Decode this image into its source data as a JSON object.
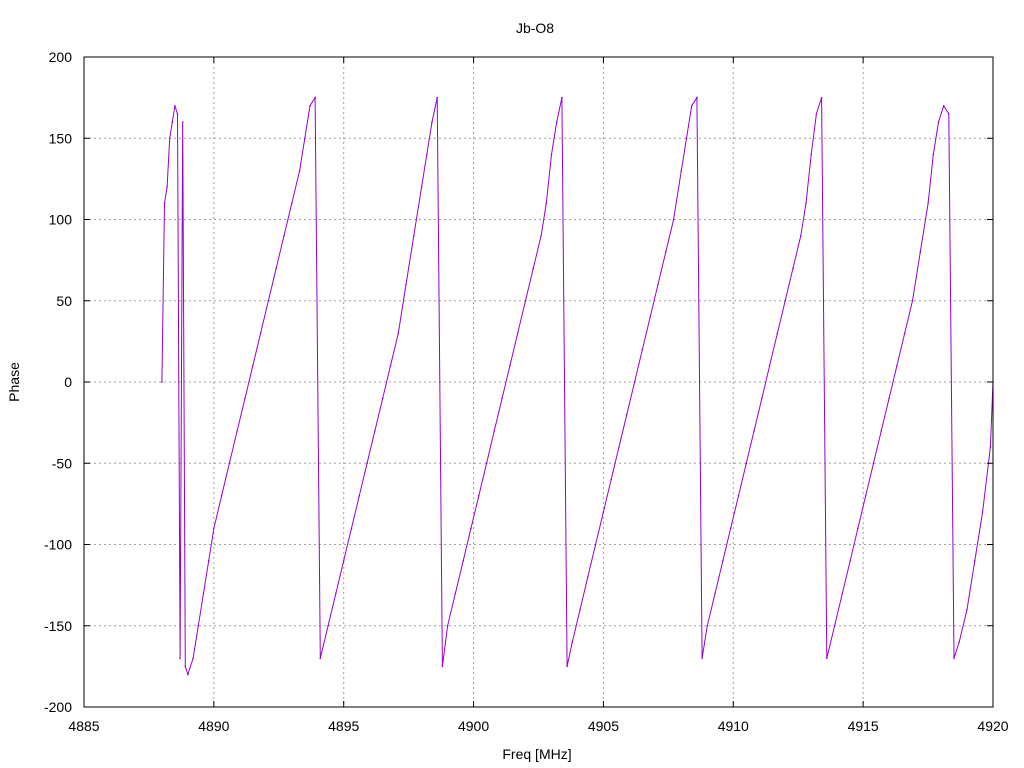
{
  "chart_data": {
    "type": "line",
    "title": "Jb-O8",
    "xlabel": "Freq [MHz]",
    "ylabel": "Phase",
    "xlim": [
      4885,
      4920
    ],
    "ylim": [
      -200,
      200
    ],
    "x_ticks": [
      "4885",
      "4890",
      "4895",
      "4900",
      "4905",
      "4910",
      "4915",
      "4920"
    ],
    "y_ticks": [
      "-200",
      "-150",
      "-100",
      "-50",
      "0",
      "50",
      "100",
      "150",
      "200"
    ],
    "grid": true,
    "legend": "none",
    "series": [
      {
        "color": "#9400d3",
        "x": [
          4888.0,
          4888.1,
          4888.2,
          4888.3,
          4888.4,
          4888.5,
          4888.6,
          4888.7,
          4888.8,
          4888.9,
          4889.0,
          4889.2,
          4889.4,
          4889.6,
          4889.8,
          4890.0,
          4890.3,
          4890.6,
          4890.9,
          4891.2,
          4891.5,
          4891.8,
          4892.1,
          4892.4,
          4892.7,
          4893.0,
          4893.3,
          4893.5,
          4893.7,
          4893.9,
          4894.1,
          4894.4,
          4894.7,
          4895.0,
          4895.3,
          4895.6,
          4895.9,
          4896.2,
          4896.5,
          4896.8,
          4897.1,
          4897.4,
          4897.7,
          4898.0,
          4898.2,
          4898.4,
          4898.6,
          4898.8,
          4899.0,
          4899.3,
          4899.6,
          4899.9,
          4900.2,
          4900.5,
          4900.8,
          4901.1,
          4901.4,
          4901.7,
          4902.0,
          4902.3,
          4902.6,
          4902.8,
          4903.0,
          4903.2,
          4903.4,
          4903.6,
          4903.8,
          4904.1,
          4904.4,
          4904.7,
          4905.0,
          4905.3,
          4905.6,
          4905.9,
          4906.2,
          4906.5,
          4906.8,
          4907.1,
          4907.4,
          4907.7,
          4908.0,
          4908.2,
          4908.4,
          4908.6,
          4908.8,
          4909.0,
          4909.3,
          4909.6,
          4909.9,
          4910.2,
          4910.5,
          4910.8,
          4911.1,
          4911.4,
          4911.7,
          4912.0,
          4912.3,
          4912.6,
          4912.8,
          4913.0,
          4913.2,
          4913.4,
          4913.6,
          4913.9,
          4914.2,
          4914.5,
          4914.8,
          4915.1,
          4915.4,
          4915.7,
          4916.0,
          4916.3,
          4916.6,
          4916.9,
          4917.2,
          4917.5,
          4917.7,
          4917.9,
          4918.1,
          4918.3,
          4918.5,
          4918.7,
          4919.0,
          4919.3,
          4919.6,
          4919.9,
          4920.0
        ],
        "y": [
          0,
          110,
          120,
          150,
          160,
          170,
          165,
          -170,
          160,
          -175,
          -180,
          -170,
          -150,
          -130,
          -110,
          -90,
          -70,
          -50,
          -30,
          -10,
          10,
          30,
          50,
          70,
          90,
          110,
          130,
          150,
          170,
          175,
          -170,
          -150,
          -130,
          -110,
          -90,
          -70,
          -50,
          -30,
          -10,
          10,
          30,
          60,
          90,
          120,
          140,
          160,
          175,
          -175,
          -150,
          -130,
          -110,
          -90,
          -70,
          -50,
          -30,
          -10,
          10,
          30,
          50,
          70,
          90,
          110,
          140,
          160,
          175,
          -175,
          -160,
          -140,
          -120,
          -100,
          -80,
          -60,
          -40,
          -20,
          0,
          20,
          40,
          60,
          80,
          100,
          130,
          150,
          170,
          175,
          -170,
          -150,
          -130,
          -110,
          -90,
          -70,
          -50,
          -30,
          -10,
          10,
          30,
          50,
          70,
          90,
          110,
          140,
          165,
          175,
          -170,
          -150,
          -130,
          -110,
          -90,
          -70,
          -50,
          -30,
          -10,
          10,
          30,
          50,
          80,
          110,
          140,
          160,
          170,
          165,
          -170,
          -160,
          -140,
          -110,
          -80,
          -40,
          0
        ]
      }
    ]
  }
}
